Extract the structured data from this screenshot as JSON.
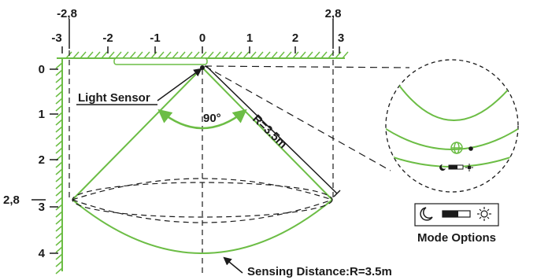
{
  "colors": {
    "accent": "#6cbd45",
    "ink": "#1a1a1a"
  },
  "x_axis": {
    "ticks": [
      "-3",
      "-2",
      "-1",
      "0",
      "1",
      "2",
      "3"
    ],
    "edge_labels": [
      "-2,8",
      "2,8"
    ]
  },
  "y_axis": {
    "ticks": [
      "0",
      "1",
      "2",
      "3",
      "4"
    ],
    "edge_label": "2,8"
  },
  "labels": {
    "light_sensor": "Light Sensor",
    "angle": "90°",
    "radius": "R=3.5m",
    "sensing_distance": "Sensing Distance:R=3.5m",
    "mode_options": "Mode Options"
  },
  "icons": [
    "globe-icon",
    "moon-icon",
    "slider-switch-icon",
    "sun-icon"
  ]
}
